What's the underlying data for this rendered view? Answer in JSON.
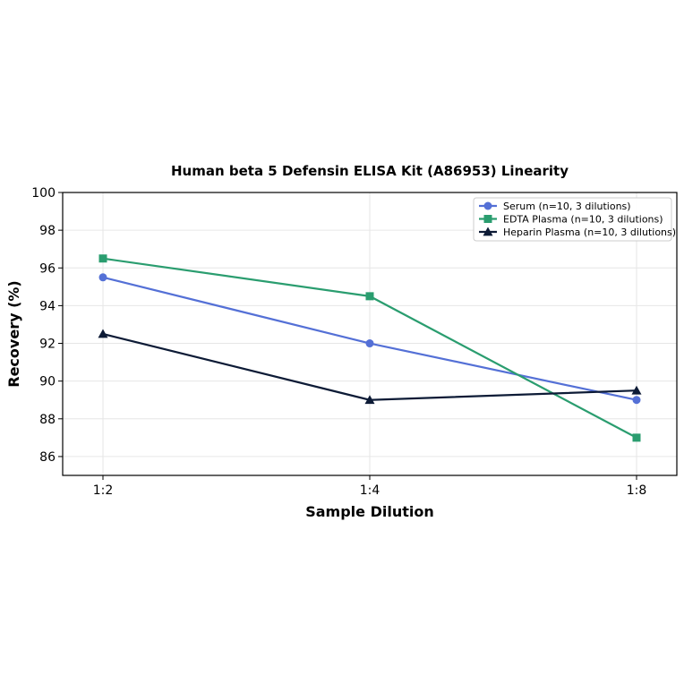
{
  "chart_data": {
    "type": "line",
    "title": "Human beta 5 Defensin ELISA Kit (A86953) Linearity",
    "xlabel": "Sample Dilution",
    "ylabel": "Recovery (%)",
    "categories": [
      "1:2",
      "1:4",
      "1:8"
    ],
    "ylim": [
      85,
      100
    ],
    "yticks": [
      86,
      88,
      90,
      92,
      94,
      96,
      98,
      100
    ],
    "grid": true,
    "legend_position": "top-right",
    "series": [
      {
        "name": "Serum (n=10, 3 dilutions)",
        "values": [
          95.5,
          92.0,
          89.0
        ],
        "color": "#5470d6",
        "marker": "circle"
      },
      {
        "name": "EDTA Plasma (n=10, 3 dilutions)",
        "values": [
          96.5,
          94.5,
          87.0
        ],
        "color": "#2a9d6f",
        "marker": "square"
      },
      {
        "name": "Heparin Plasma (n=10, 3 dilutions)",
        "values": [
          92.5,
          89.0,
          89.5
        ],
        "color": "#0d1b36",
        "marker": "triangle"
      }
    ]
  }
}
